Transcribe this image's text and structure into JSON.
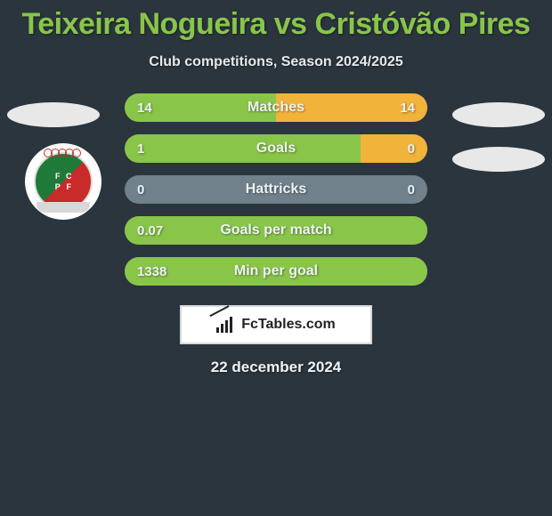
{
  "title": "Teixeira Nogueira vs Cristóvão Pires",
  "subtitle": "Club competitions, Season 2024/2025",
  "colors": {
    "bg": "#2a353e",
    "accent_green": "#89c549",
    "accent_yellow": "#f2b33b",
    "bar_bg": "#70818b",
    "text": "#eef2f4",
    "oval": "#e8e8e8"
  },
  "stats": [
    {
      "label": "Matches",
      "left_val": "14",
      "right_val": "14",
      "left_pct": 50,
      "right_pct": 50
    },
    {
      "label": "Goals",
      "left_val": "1",
      "right_val": "0",
      "left_pct": 78,
      "right_pct": 22
    },
    {
      "label": "Hattricks",
      "left_val": "0",
      "right_val": "0",
      "left_pct": 0,
      "right_pct": 0
    },
    {
      "label": "Goals per match",
      "left_val": "0.07",
      "right_val": "",
      "left_pct": 100,
      "right_pct": 0
    },
    {
      "label": "Min per goal",
      "left_val": "1338",
      "right_val": "",
      "left_pct": 100,
      "right_pct": 0
    }
  ],
  "club_badge": {
    "letters": [
      "F",
      "C",
      "P",
      "F"
    ]
  },
  "brand": {
    "text": "FcTables.com"
  },
  "date": "22 december 2024"
}
